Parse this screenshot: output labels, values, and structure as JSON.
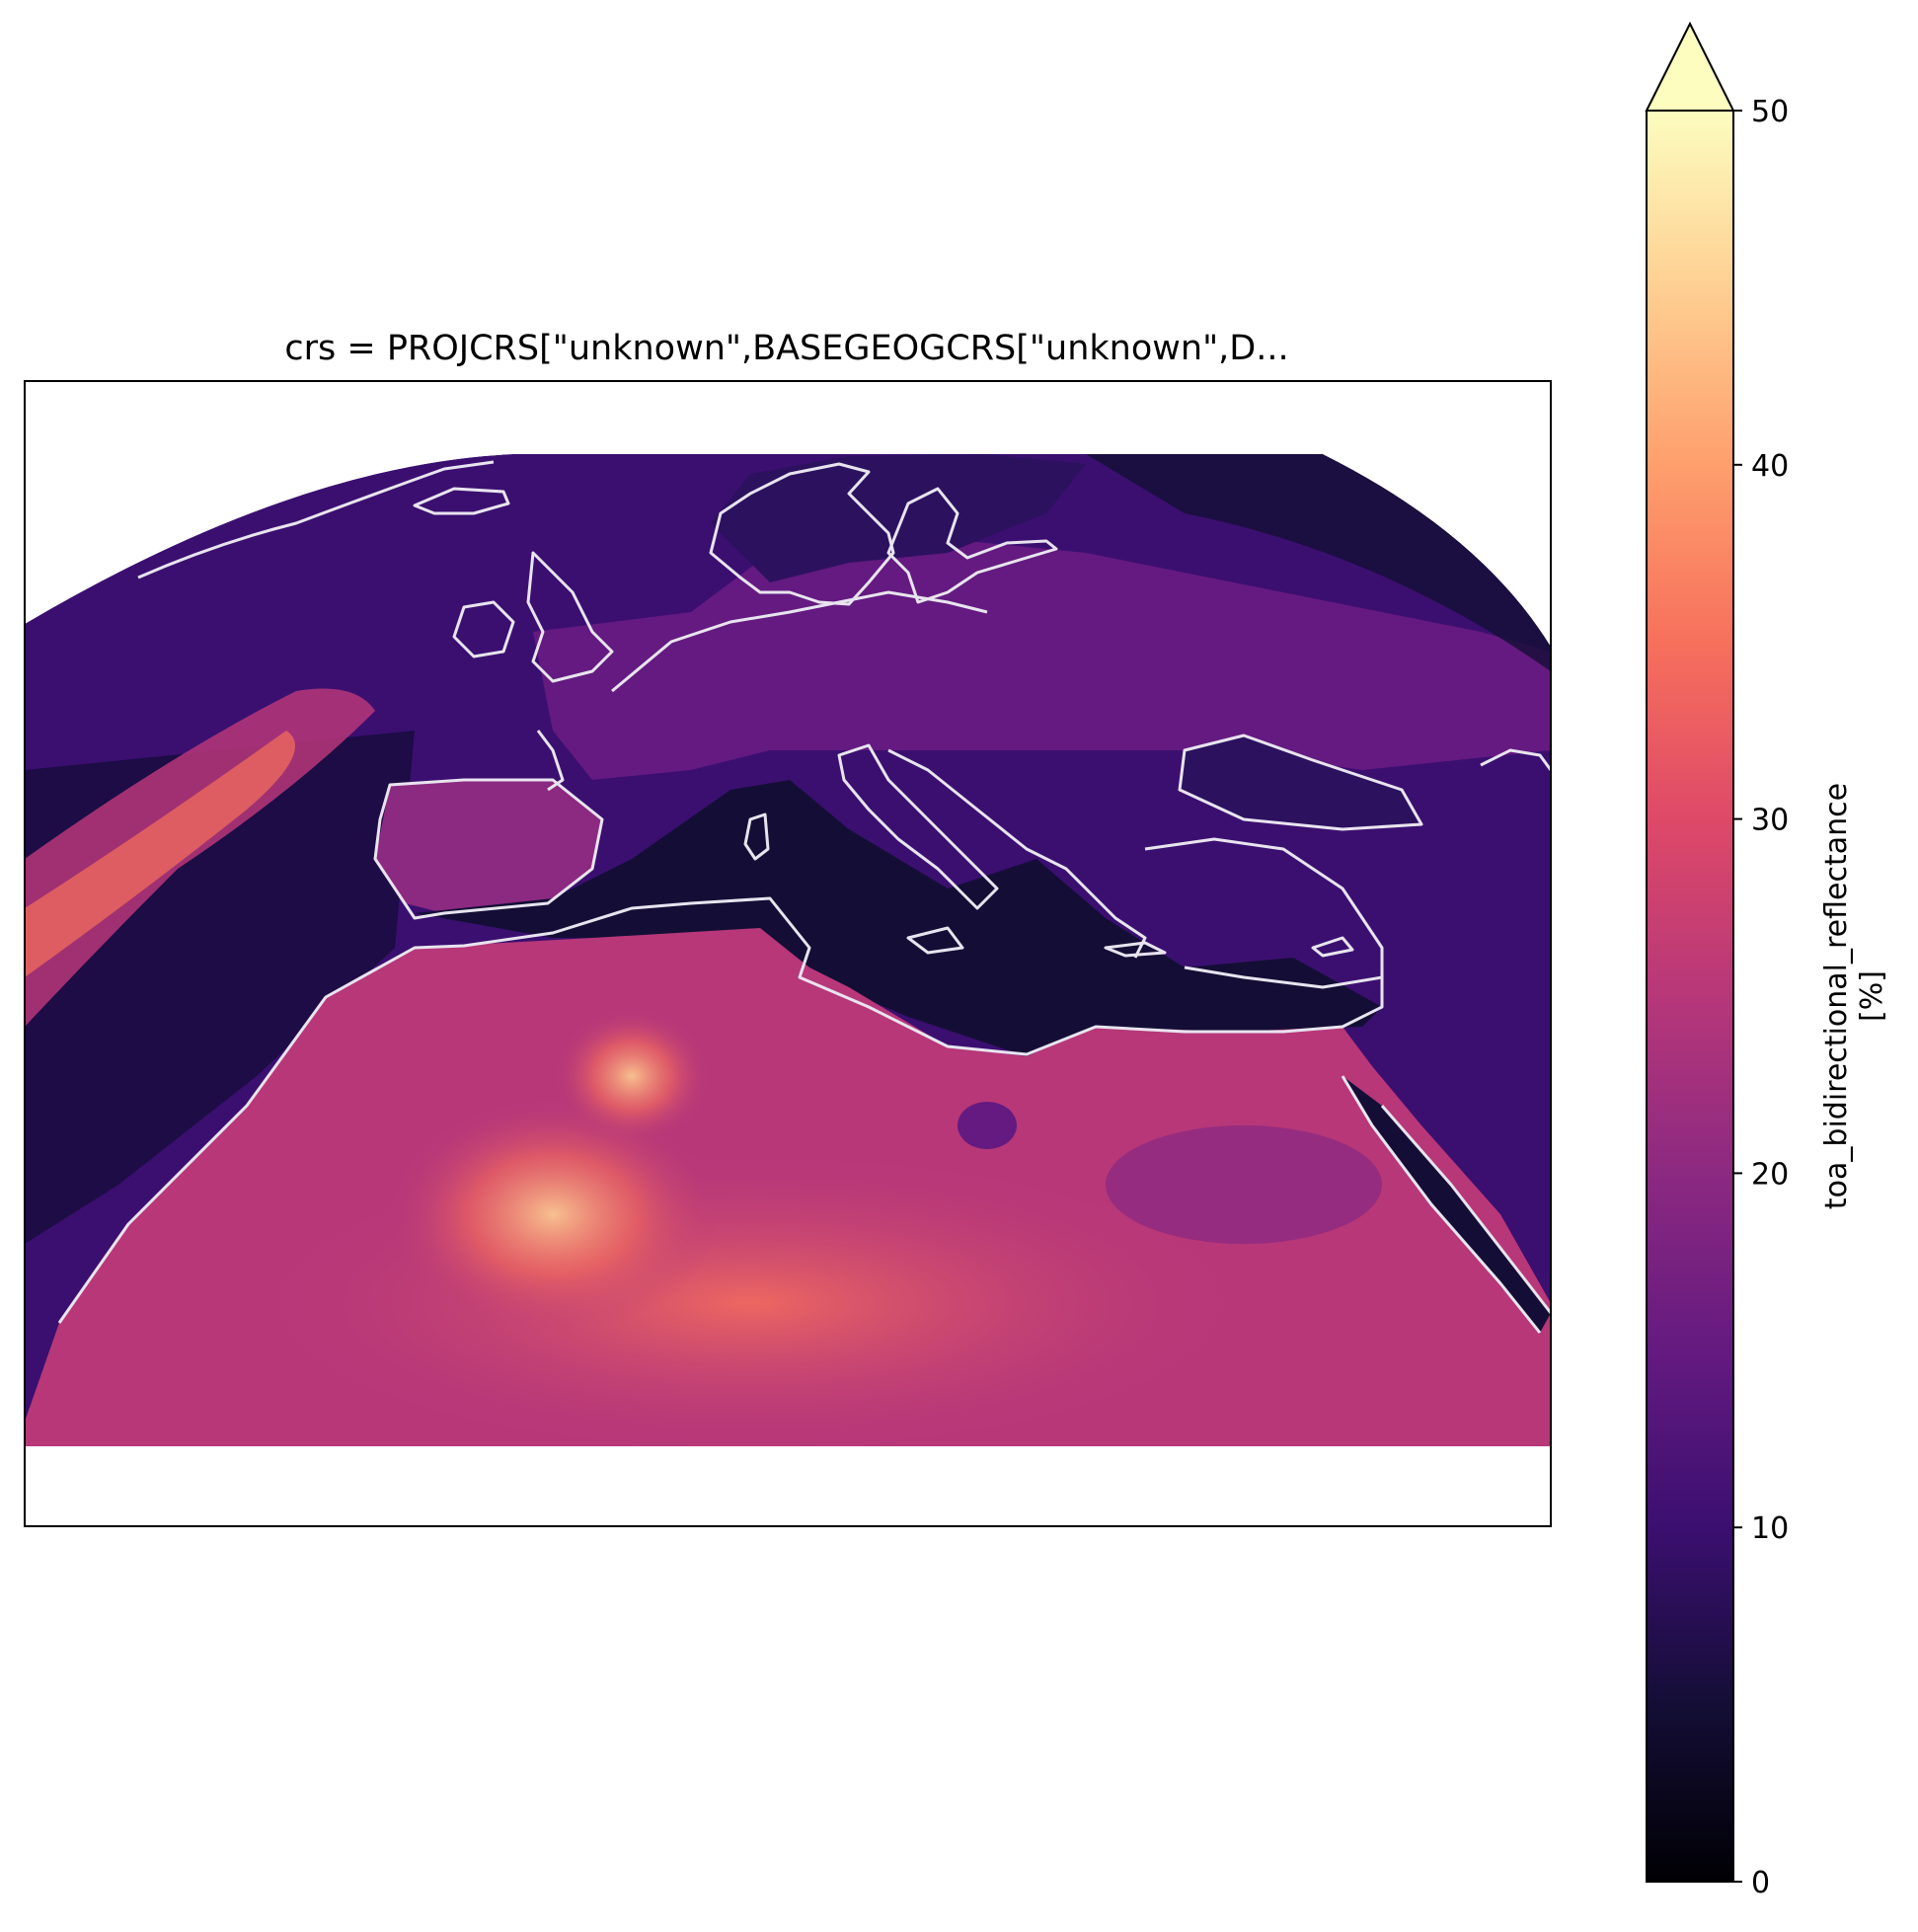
{
  "title": "crs = PROJCRS[\"unknown\",BASEGEOGCRS[\"unknown\",D...",
  "colorbar": {
    "label_line1": "toa_bidirectional_reflectance",
    "label_line2": "[%]",
    "min": 0,
    "max": 50,
    "extend": "max",
    "colormap": "magma",
    "ticks": [
      {
        "value": 0,
        "label": "0"
      },
      {
        "value": 10,
        "label": "10"
      },
      {
        "value": 20,
        "label": "20"
      },
      {
        "value": 30,
        "label": "30"
      },
      {
        "value": 40,
        "label": "40"
      },
      {
        "value": 50,
        "label": "50"
      }
    ]
  },
  "colors": {
    "space": "#000004",
    "sea": "#2c115f",
    "land": "#8c2981",
    "desert": "#b73779",
    "cloud_bright": "#fd9f6c",
    "coastline": "#e8e4ef",
    "extend_arrow": "#fcfdbf"
  }
}
